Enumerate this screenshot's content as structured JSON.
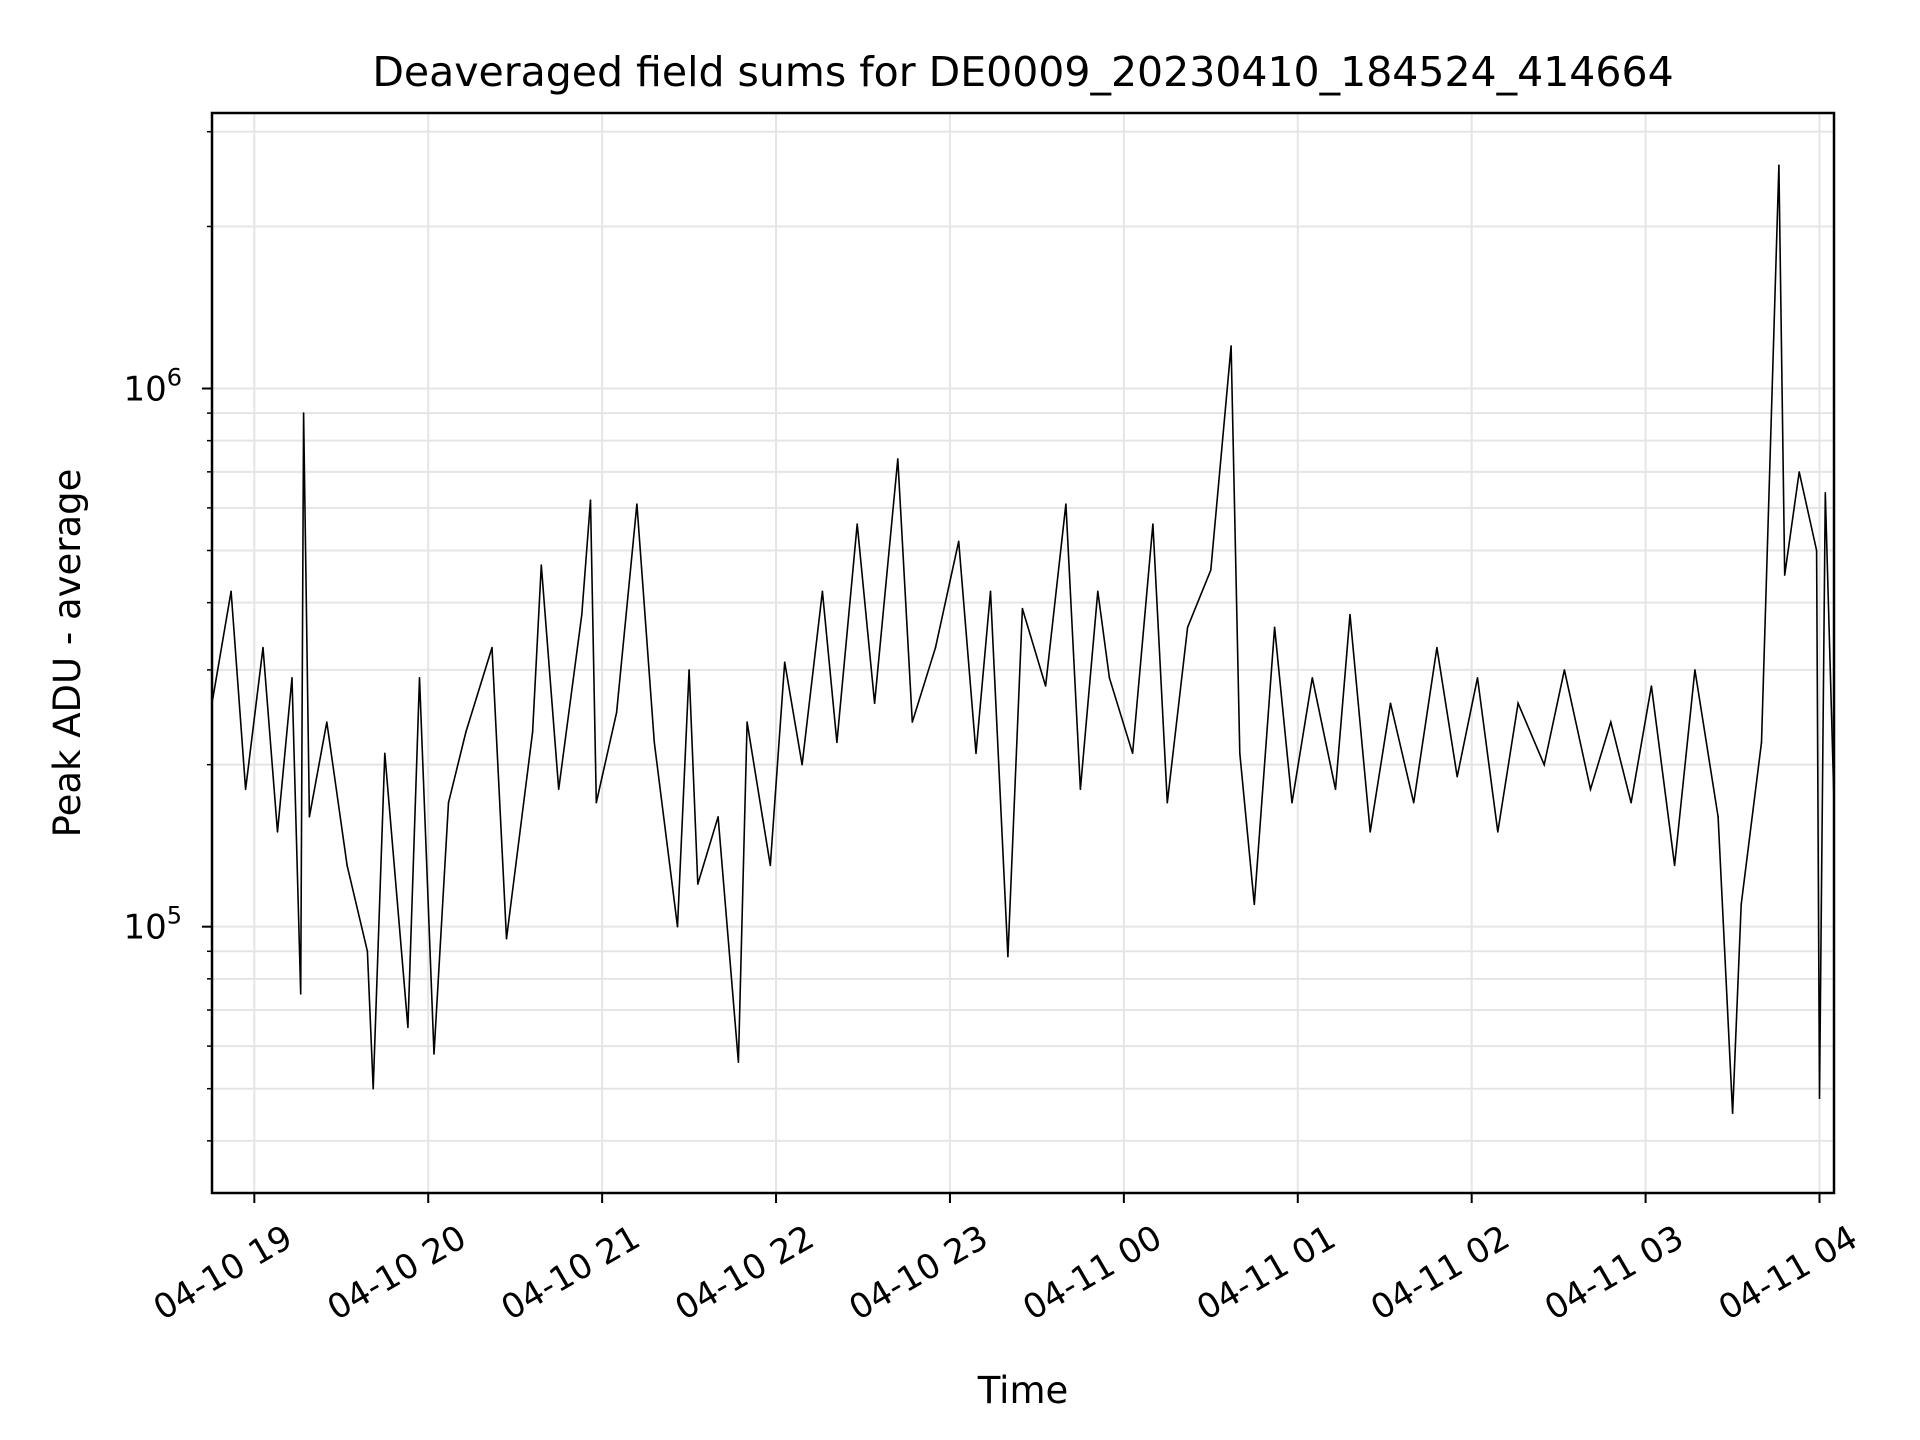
{
  "chart_data": {
    "type": "line",
    "title": "Deaveraged field sums for DE0009_20230410_184524_414664",
    "xlabel": "Time",
    "ylabel": "Peak ADU - average",
    "yscale": "log",
    "x_range": [
      "2023-04-10 18:45:24",
      "2023-04-11 04:05:00"
    ],
    "ylim": [
      32000,
      3250000
    ],
    "grid": true,
    "line_color": "#000000",
    "grid_color": "#e5e5e5",
    "x_ticks": [
      {
        "value": "2023-04-10 19:00",
        "label": "04-10 19"
      },
      {
        "value": "2023-04-10 20:00",
        "label": "04-10 20"
      },
      {
        "value": "2023-04-10 21:00",
        "label": "04-10 21"
      },
      {
        "value": "2023-04-10 22:00",
        "label": "04-10 22"
      },
      {
        "value": "2023-04-10 23:00",
        "label": "04-10 23"
      },
      {
        "value": "2023-04-11 00:00",
        "label": "04-11 00"
      },
      {
        "value": "2023-04-11 01:00",
        "label": "04-11 01"
      },
      {
        "value": "2023-04-11 02:00",
        "label": "04-11 02"
      },
      {
        "value": "2023-04-11 03:00",
        "label": "04-11 03"
      },
      {
        "value": "2023-04-11 04:00",
        "label": "04-11 04"
      }
    ],
    "y_major_ticks": [
      {
        "value": 100000,
        "base": "10",
        "exp": "5"
      },
      {
        "value": 1000000,
        "base": "10",
        "exp": "6"
      }
    ],
    "y_minor_ticks": [
      40000,
      50000,
      60000,
      70000,
      80000,
      90000,
      200000,
      300000,
      400000,
      500000,
      600000,
      700000,
      800000,
      900000,
      2000000,
      3000000
    ],
    "series": [
      {
        "values": [
          [
            "2023-04-10 18:45:24",
            260000
          ],
          [
            "2023-04-10 18:52:00",
            420000
          ],
          [
            "2023-04-10 18:57:00",
            180000
          ],
          [
            "2023-04-10 19:03:00",
            330000
          ],
          [
            "2023-04-10 19:08:00",
            150000
          ],
          [
            "2023-04-10 19:13:00",
            290000
          ],
          [
            "2023-04-10 19:16:00",
            75000
          ],
          [
            "2023-04-10 19:17:00",
            900000
          ],
          [
            "2023-04-10 19:19:00",
            160000
          ],
          [
            "2023-04-10 19:25:00",
            240000
          ],
          [
            "2023-04-10 19:32:00",
            130000
          ],
          [
            "2023-04-10 19:39:00",
            90000
          ],
          [
            "2023-04-10 19:41:00",
            50000
          ],
          [
            "2023-04-10 19:45:00",
            210000
          ],
          [
            "2023-04-10 19:53:00",
            65000
          ],
          [
            "2023-04-10 19:57:00",
            290000
          ],
          [
            "2023-04-10 20:02:00",
            58000
          ],
          [
            "2023-04-10 20:07:00",
            170000
          ],
          [
            "2023-04-10 20:13:00",
            230000
          ],
          [
            "2023-04-10 20:22:00",
            330000
          ],
          [
            "2023-04-10 20:27:00",
            95000
          ],
          [
            "2023-04-10 20:36:00",
            230000
          ],
          [
            "2023-04-10 20:39:00",
            470000
          ],
          [
            "2023-04-10 20:45:00",
            180000
          ],
          [
            "2023-04-10 20:53:00",
            380000
          ],
          [
            "2023-04-10 20:56:00",
            620000
          ],
          [
            "2023-04-10 20:58:00",
            170000
          ],
          [
            "2023-04-10 21:05:00",
            250000
          ],
          [
            "2023-04-10 21:12:00",
            610000
          ],
          [
            "2023-04-10 21:18:00",
            220000
          ],
          [
            "2023-04-10 21:26:00",
            100000
          ],
          [
            "2023-04-10 21:30:00",
            300000
          ],
          [
            "2023-04-10 21:33:00",
            120000
          ],
          [
            "2023-04-10 21:40:00",
            160000
          ],
          [
            "2023-04-10 21:47:00",
            56000
          ],
          [
            "2023-04-10 21:50:00",
            240000
          ],
          [
            "2023-04-10 21:58:00",
            130000
          ],
          [
            "2023-04-10 22:03:00",
            310000
          ],
          [
            "2023-04-10 22:09:00",
            200000
          ],
          [
            "2023-04-10 22:16:00",
            420000
          ],
          [
            "2023-04-10 22:21:00",
            220000
          ],
          [
            "2023-04-10 22:28:00",
            560000
          ],
          [
            "2023-04-10 22:34:00",
            260000
          ],
          [
            "2023-04-10 22:42:00",
            740000
          ],
          [
            "2023-04-10 22:47:00",
            240000
          ],
          [
            "2023-04-10 22:55:00",
            330000
          ],
          [
            "2023-04-10 23:03:00",
            520000
          ],
          [
            "2023-04-10 23:09:00",
            210000
          ],
          [
            "2023-04-10 23:14:00",
            420000
          ],
          [
            "2023-04-10 23:20:00",
            88000
          ],
          [
            "2023-04-10 23:25:00",
            390000
          ],
          [
            "2023-04-10 23:33:00",
            280000
          ],
          [
            "2023-04-10 23:40:00",
            610000
          ],
          [
            "2023-04-10 23:45:00",
            180000
          ],
          [
            "2023-04-10 23:51:00",
            420000
          ],
          [
            "2023-04-10 23:55:00",
            290000
          ],
          [
            "2023-04-11 00:03:00",
            210000
          ],
          [
            "2023-04-11 00:10:00",
            560000
          ],
          [
            "2023-04-11 00:15:00",
            170000
          ],
          [
            "2023-04-11 00:22:00",
            360000
          ],
          [
            "2023-04-11 00:30:00",
            460000
          ],
          [
            "2023-04-11 00:37:00",
            1200000
          ],
          [
            "2023-04-11 00:40:00",
            210000
          ],
          [
            "2023-04-11 00:45:00",
            110000
          ],
          [
            "2023-04-11 00:52:00",
            360000
          ],
          [
            "2023-04-11 00:58:00",
            170000
          ],
          [
            "2023-04-11 01:05:00",
            290000
          ],
          [
            "2023-04-11 01:13:00",
            180000
          ],
          [
            "2023-04-11 01:18:00",
            380000
          ],
          [
            "2023-04-11 01:25:00",
            150000
          ],
          [
            "2023-04-11 01:32:00",
            260000
          ],
          [
            "2023-04-11 01:40:00",
            170000
          ],
          [
            "2023-04-11 01:48:00",
            330000
          ],
          [
            "2023-04-11 01:55:00",
            190000
          ],
          [
            "2023-04-11 02:02:00",
            290000
          ],
          [
            "2023-04-11 02:09:00",
            150000
          ],
          [
            "2023-04-11 02:16:00",
            260000
          ],
          [
            "2023-04-11 02:25:00",
            200000
          ],
          [
            "2023-04-11 02:32:00",
            300000
          ],
          [
            "2023-04-11 02:41:00",
            180000
          ],
          [
            "2023-04-11 02:48:00",
            240000
          ],
          [
            "2023-04-11 02:55:00",
            170000
          ],
          [
            "2023-04-11 03:02:00",
            280000
          ],
          [
            "2023-04-11 03:10:00",
            130000
          ],
          [
            "2023-04-11 03:17:00",
            300000
          ],
          [
            "2023-04-11 03:25:00",
            160000
          ],
          [
            "2023-04-11 03:30:00",
            45000
          ],
          [
            "2023-04-11 03:33:00",
            110000
          ],
          [
            "2023-04-11 03:40:00",
            220000
          ],
          [
            "2023-04-11 03:46:00",
            2600000
          ],
          [
            "2023-04-11 03:48:00",
            450000
          ],
          [
            "2023-04-11 03:53:00",
            700000
          ],
          [
            "2023-04-11 03:59:00",
            500000
          ],
          [
            "2023-04-11 04:00:00",
            48000
          ],
          [
            "2023-04-11 04:02:00",
            640000
          ],
          [
            "2023-04-11 04:05:00",
            170000
          ]
        ]
      }
    ]
  }
}
